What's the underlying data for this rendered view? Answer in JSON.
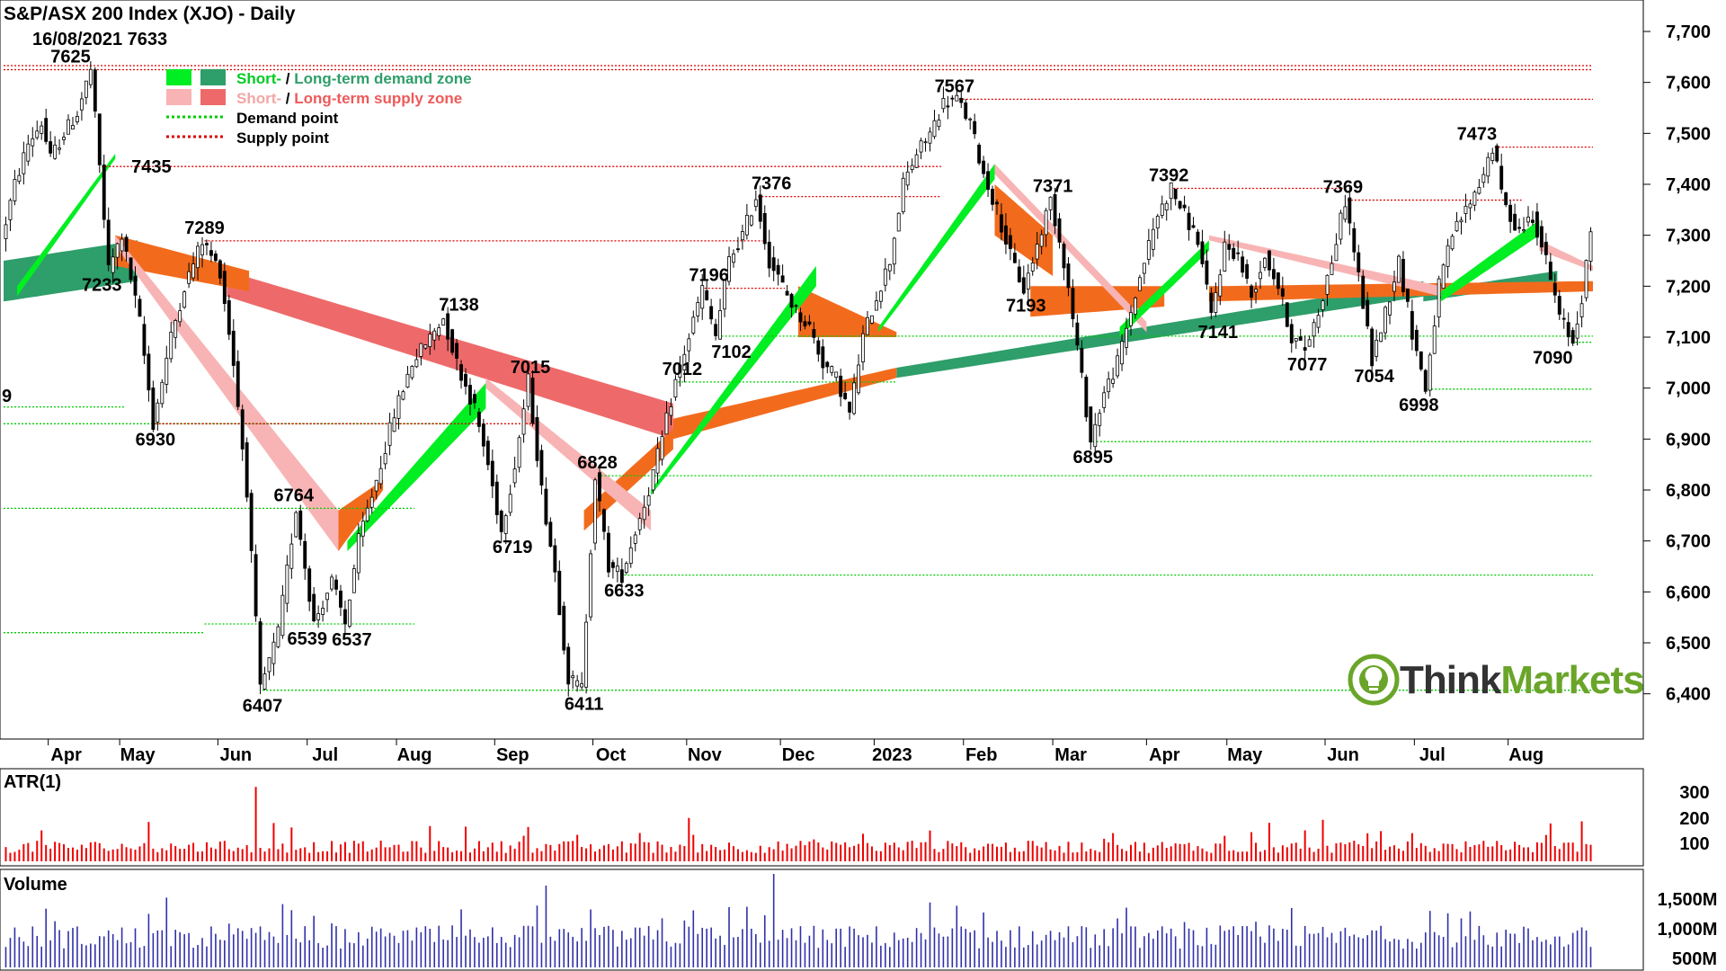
{
  "header": {
    "title": "S&P/ASX 200 Index (XJO) - Daily",
    "subtitle": "16/08/2021 7633"
  },
  "legend": {
    "demand_zone": {
      "short": "Short-",
      "long": "Long-term demand zone",
      "sep": " / "
    },
    "supply_zone": {
      "short": "Short-",
      "long": "Long-term supply zone",
      "sep": " / "
    },
    "demand_point": "Demand point",
    "supply_point": "Supply point"
  },
  "colors": {
    "up_candle": "#ffffff",
    "down_candle": "#000000",
    "short_demand": "#00ee22",
    "long_demand": "#2e9e6a",
    "short_supply": "#f8b4b4",
    "long_supply": "#ee6a6a",
    "orange_zone": "#f26b1d",
    "demand_point_line": "#00cc00",
    "supply_point_line": "#dd0000",
    "atr_bars": "#ee0000",
    "volume_bars": "#3030aa",
    "atr_label": "#ee0000",
    "volume_label": "#4b0f8a",
    "logo_green": "#6aa52a"
  },
  "panels": {
    "atr_label": "ATR(1)",
    "volume_label": "Volume",
    "atr_ticks": [
      "300",
      "200",
      "100"
    ],
    "volume_ticks": [
      "1,500M",
      "1,000M",
      "500M"
    ]
  },
  "logo": {
    "text_a": "Think",
    "text_b": "Markets"
  },
  "cut_label": "9",
  "chart_data": {
    "type": "candlestick",
    "title": "S&P/ASX 200 Index (XJO) - Daily",
    "ylim": [
      6350,
      7730
    ],
    "yticks": [
      "7,700",
      "7,600",
      "7,500",
      "7,400",
      "7,300",
      "7,200",
      "7,100",
      "7,000",
      "6,900",
      "6,800",
      "6,700",
      "6,600",
      "6,500",
      "6,400"
    ],
    "yticks_values": [
      7700,
      7600,
      7500,
      7400,
      7300,
      7200,
      7100,
      7000,
      6900,
      6800,
      6700,
      6600,
      6500,
      6400
    ],
    "xlim": [
      0,
      356
    ],
    "months": [
      {
        "label": "Apr",
        "i": 10
      },
      {
        "label": "May",
        "i": 26
      },
      {
        "label": "Jun",
        "i": 48
      },
      {
        "label": "Jul",
        "i": 68
      },
      {
        "label": "Aug",
        "i": 88
      },
      {
        "label": "Sep",
        "i": 110
      },
      {
        "label": "Oct",
        "i": 132
      },
      {
        "label": "Nov",
        "i": 153
      },
      {
        "label": "Dec",
        "i": 174
      },
      {
        "label": "2023",
        "i": 195
      },
      {
        "label": "Feb",
        "i": 215
      },
      {
        "label": "Mar",
        "i": 235
      },
      {
        "label": "Apr",
        "i": 256
      },
      {
        "label": "May",
        "i": 274
      },
      {
        "label": "Jun",
        "i": 296
      },
      {
        "label": "Jul",
        "i": 316
      },
      {
        "label": "Aug",
        "i": 337
      }
    ],
    "price_path": [
      [
        0,
        7290
      ],
      [
        3,
        7400
      ],
      [
        6,
        7480
      ],
      [
        9,
        7520
      ],
      [
        11,
        7450
      ],
      [
        14,
        7500
      ],
      [
        17,
        7540
      ],
      [
        20,
        7625
      ],
      [
        22,
        7435
      ],
      [
        24,
        7233
      ],
      [
        27,
        7300
      ],
      [
        31,
        7130
      ],
      [
        34,
        6930
      ],
      [
        38,
        7100
      ],
      [
        41,
        7200
      ],
      [
        45,
        7289
      ],
      [
        49,
        7230
      ],
      [
        52,
        7050
      ],
      [
        55,
        6800
      ],
      [
        58,
        6407
      ],
      [
        62,
        6520
      ],
      [
        66,
        6764
      ],
      [
        70,
        6539
      ],
      [
        74,
        6620
      ],
      [
        77,
        6537
      ],
      [
        80,
        6700
      ],
      [
        84,
        6820
      ],
      [
        88,
        6950
      ],
      [
        92,
        7050
      ],
      [
        96,
        7100
      ],
      [
        99,
        7138
      ],
      [
        102,
        7050
      ],
      [
        106,
        6960
      ],
      [
        109,
        6850
      ],
      [
        112,
        6719
      ],
      [
        115,
        6850
      ],
      [
        118,
        7015
      ],
      [
        121,
        6800
      ],
      [
        124,
        6640
      ],
      [
        127,
        6430
      ],
      [
        130,
        6411
      ],
      [
        133,
        6828
      ],
      [
        136,
        6650
      ],
      [
        139,
        6633
      ],
      [
        142,
        6720
      ],
      [
        145,
        6800
      ],
      [
        148,
        6900
      ],
      [
        151,
        7012
      ],
      [
        154,
        7100
      ],
      [
        157,
        7196
      ],
      [
        160,
        7102
      ],
      [
        163,
        7250
      ],
      [
        166,
        7300
      ],
      [
        169,
        7376
      ],
      [
        172,
        7250
      ],
      [
        175,
        7200
      ],
      [
        178,
        7150
      ],
      [
        181,
        7120
      ],
      [
        184,
        7050
      ],
      [
        187,
        7020
      ],
      [
        190,
        6950
      ],
      [
        193,
        7100
      ],
      [
        196,
        7180
      ],
      [
        199,
        7250
      ],
      [
        202,
        7400
      ],
      [
        205,
        7460
      ],
      [
        208,
        7500
      ],
      [
        211,
        7560
      ],
      [
        214,
        7567
      ],
      [
        217,
        7520
      ],
      [
        220,
        7420
      ],
      [
        223,
        7350
      ],
      [
        226,
        7260
      ],
      [
        229,
        7193
      ],
      [
        232,
        7280
      ],
      [
        235,
        7371
      ],
      [
        238,
        7250
      ],
      [
        241,
        7080
      ],
      [
        244,
        6895
      ],
      [
        247,
        6990
      ],
      [
        250,
        7050
      ],
      [
        253,
        7150
      ],
      [
        256,
        7250
      ],
      [
        259,
        7340
      ],
      [
        262,
        7392
      ],
      [
        265,
        7340
      ],
      [
        268,
        7290
      ],
      [
        271,
        7141
      ],
      [
        274,
        7280
      ],
      [
        277,
        7260
      ],
      [
        280,
        7180
      ],
      [
        283,
        7260
      ],
      [
        286,
        7200
      ],
      [
        289,
        7100
      ],
      [
        292,
        7077
      ],
      [
        295,
        7150
      ],
      [
        298,
        7250
      ],
      [
        301,
        7369
      ],
      [
        304,
        7220
      ],
      [
        307,
        7054
      ],
      [
        310,
        7150
      ],
      [
        313,
        7250
      ],
      [
        316,
        7110
      ],
      [
        319,
        6998
      ],
      [
        322,
        7200
      ],
      [
        325,
        7300
      ],
      [
        328,
        7350
      ],
      [
        331,
        7400
      ],
      [
        334,
        7473
      ],
      [
        337,
        7350
      ],
      [
        340,
        7310
      ],
      [
        343,
        7340
      ],
      [
        346,
        7250
      ],
      [
        349,
        7140
      ],
      [
        352,
        7090
      ],
      [
        354,
        7180
      ],
      [
        356,
        7300
      ]
    ],
    "short_demand_zone": [
      {
        "from": 3,
        "to": 25,
        "lo": [
          7180,
          7450
        ],
        "hi": [
          7200,
          7460
        ]
      },
      {
        "from": 77,
        "to": 108,
        "lo": [
          6680,
          6960
        ],
        "hi": [
          6700,
          7010
        ]
      },
      {
        "from": 145,
        "to": 182,
        "lo": [
          6790,
          7200
        ],
        "hi": [
          6800,
          7240
        ]
      },
      {
        "from": 196,
        "to": 222,
        "lo": [
          7110,
          7410
        ],
        "hi": [
          7120,
          7440
        ]
      },
      {
        "from": 250,
        "to": 270,
        "lo": [
          7100,
          7270
        ],
        "hi": [
          7120,
          7290
        ]
      },
      {
        "from": 322,
        "to": 344,
        "lo": [
          7170,
          7300
        ],
        "hi": [
          7190,
          7330
        ]
      }
    ],
    "long_demand_zone": [
      {
        "from": 0,
        "to": 30,
        "lo": [
          7170,
          7210
        ],
        "hi": [
          7250,
          7290
        ]
      },
      {
        "from": 200,
        "to": 318,
        "lo": [
          7020,
          7180
        ],
        "hi": [
          7040,
          7210
        ]
      },
      {
        "from": 318,
        "to": 348,
        "lo": [
          7170,
          7210
        ],
        "hi": [
          7190,
          7230
        ]
      }
    ],
    "short_supply_zone": [
      {
        "from": 25,
        "to": 75,
        "lo": [
          7280,
          6680
        ],
        "hi": [
          7300,
          6760
        ]
      },
      {
        "from": 108,
        "to": 145,
        "lo": [
          7000,
          6720
        ],
        "hi": [
          7020,
          6760
        ]
      },
      {
        "from": 222,
        "to": 256,
        "lo": [
          7420,
          7110
        ],
        "hi": [
          7440,
          7130
        ]
      },
      {
        "from": 270,
        "to": 322,
        "lo": [
          7290,
          7180
        ],
        "hi": [
          7300,
          7200
        ]
      },
      {
        "from": 344,
        "to": 356,
        "lo": [
          7270,
          7230
        ],
        "hi": [
          7290,
          7240
        ]
      }
    ],
    "long_supply_zone": [
      {
        "from": 50,
        "to": 150,
        "lo": [
          7180,
          6900
        ],
        "hi": [
          7230,
          6970
        ]
      }
    ],
    "orange_zone": [
      {
        "from": 25,
        "to": 55,
        "lo": [
          7240,
          7190
        ],
        "hi": [
          7300,
          7230
        ]
      },
      {
        "from": 75,
        "to": 85,
        "lo": [
          6680,
          6800
        ],
        "hi": [
          6760,
          6820
        ]
      },
      {
        "from": 130,
        "to": 150,
        "lo": [
          6720,
          6880
        ],
        "hi": [
          6760,
          6920
        ]
      },
      {
        "from": 150,
        "to": 200,
        "lo": [
          6900,
          7020
        ],
        "hi": [
          6940,
          7040
        ]
      },
      {
        "from": 178,
        "to": 200,
        "lo": [
          7100,
          7100
        ],
        "hi": [
          7200,
          7110
        ]
      },
      {
        "from": 222,
        "to": 235,
        "lo": [
          7300,
          7220
        ],
        "hi": [
          7400,
          7300
        ]
      },
      {
        "from": 230,
        "to": 260,
        "lo": [
          7140,
          7160
        ],
        "hi": [
          7200,
          7200
        ]
      },
      {
        "from": 270,
        "to": 356,
        "lo": [
          7170,
          7190
        ],
        "hi": [
          7200,
          7210
        ]
      }
    ],
    "demand_points": [
      {
        "value": 6963,
        "from": 0,
        "to": 27
      },
      {
        "value": 6930,
        "from": 0,
        "to": 100
      },
      {
        "value": 6764,
        "from": 0,
        "to": 92
      },
      {
        "value": 6537,
        "from": 45,
        "to": 92
      },
      {
        "value": 6520,
        "from": 0,
        "to": 45
      },
      {
        "value": 6407,
        "from": 58,
        "to": 356
      },
      {
        "value": 6633,
        "from": 139,
        "to": 356
      },
      {
        "value": 6828,
        "from": 133,
        "to": 356
      },
      {
        "value": 6895,
        "from": 244,
        "to": 356
      },
      {
        "value": 6998,
        "from": 319,
        "to": 356
      },
      {
        "value": 7012,
        "from": 151,
        "to": 200
      },
      {
        "value": 7102,
        "from": 160,
        "to": 356
      },
      {
        "value": 7090,
        "from": 352,
        "to": 356
      }
    ],
    "supply_points": [
      {
        "value": 7633,
        "from": 0,
        "to": 356
      },
      {
        "value": 7625,
        "from": 0,
        "to": 356
      },
      {
        "value": 7567,
        "from": 214,
        "to": 356
      },
      {
        "value": 7473,
        "from": 334,
        "to": 356
      },
      {
        "value": 7435,
        "from": 22,
        "to": 210
      },
      {
        "value": 7376,
        "from": 169,
        "to": 210
      },
      {
        "value": 7392,
        "from": 262,
        "to": 300
      },
      {
        "value": 7369,
        "from": 301,
        "to": 340
      },
      {
        "value": 7289,
        "from": 45,
        "to": 170
      },
      {
        "value": 6930,
        "from": 34,
        "to": 120
      },
      {
        "value": 7196,
        "from": 157,
        "to": 175
      }
    ],
    "annotations": [
      {
        "text": "7625",
        "i": 15,
        "v": 7625,
        "pos": "above"
      },
      {
        "text": "7435",
        "i": 27,
        "v": 7435,
        "pos": "right"
      },
      {
        "text": "7233",
        "i": 22,
        "v": 7233,
        "pos": "below"
      },
      {
        "text": "6930",
        "i": 34,
        "v": 6930,
        "pos": "below"
      },
      {
        "text": "7289",
        "i": 45,
        "v": 7289,
        "pos": "above"
      },
      {
        "text": "6407",
        "i": 58,
        "v": 6407,
        "pos": "below"
      },
      {
        "text": "6764",
        "i": 65,
        "v": 6764,
        "pos": "above"
      },
      {
        "text": "6539",
        "i": 68,
        "v": 6539,
        "pos": "below"
      },
      {
        "text": "6537",
        "i": 78,
        "v": 6537,
        "pos": "below"
      },
      {
        "text": "7138",
        "i": 102,
        "v": 7138,
        "pos": "above"
      },
      {
        "text": "7015",
        "i": 118,
        "v": 7015,
        "pos": "above"
      },
      {
        "text": "6719",
        "i": 114,
        "v": 6719,
        "pos": "below"
      },
      {
        "text": "6828",
        "i": 133,
        "v": 6828,
        "pos": "above"
      },
      {
        "text": "6411",
        "i": 130,
        "v": 6411,
        "pos": "below"
      },
      {
        "text": "6633",
        "i": 139,
        "v": 6633,
        "pos": "below"
      },
      {
        "text": "7012",
        "i": 152,
        "v": 7012,
        "pos": "above"
      },
      {
        "text": "7196",
        "i": 158,
        "v": 7196,
        "pos": "above"
      },
      {
        "text": "7102",
        "i": 163,
        "v": 7102,
        "pos": "below"
      },
      {
        "text": "7376",
        "i": 172,
        "v": 7376,
        "pos": "above"
      },
      {
        "text": "7567",
        "i": 213,
        "v": 7567,
        "pos": "above"
      },
      {
        "text": "7371",
        "i": 235,
        "v": 7371,
        "pos": "above"
      },
      {
        "text": "7193",
        "i": 229,
        "v": 7193,
        "pos": "below"
      },
      {
        "text": "6895",
        "i": 244,
        "v": 6895,
        "pos": "below"
      },
      {
        "text": "7392",
        "i": 261,
        "v": 7392,
        "pos": "above"
      },
      {
        "text": "7141",
        "i": 272,
        "v": 7141,
        "pos": "below"
      },
      {
        "text": "7077",
        "i": 292,
        "v": 7077,
        "pos": "below"
      },
      {
        "text": "7369",
        "i": 300,
        "v": 7369,
        "pos": "above"
      },
      {
        "text": "7054",
        "i": 307,
        "v": 7054,
        "pos": "below"
      },
      {
        "text": "6998",
        "i": 317,
        "v": 6998,
        "pos": "below"
      },
      {
        "text": "7473",
        "i": 330,
        "v": 7473,
        "pos": "above"
      },
      {
        "text": "7090",
        "i": 347,
        "v": 7090,
        "pos": "below"
      }
    ]
  }
}
